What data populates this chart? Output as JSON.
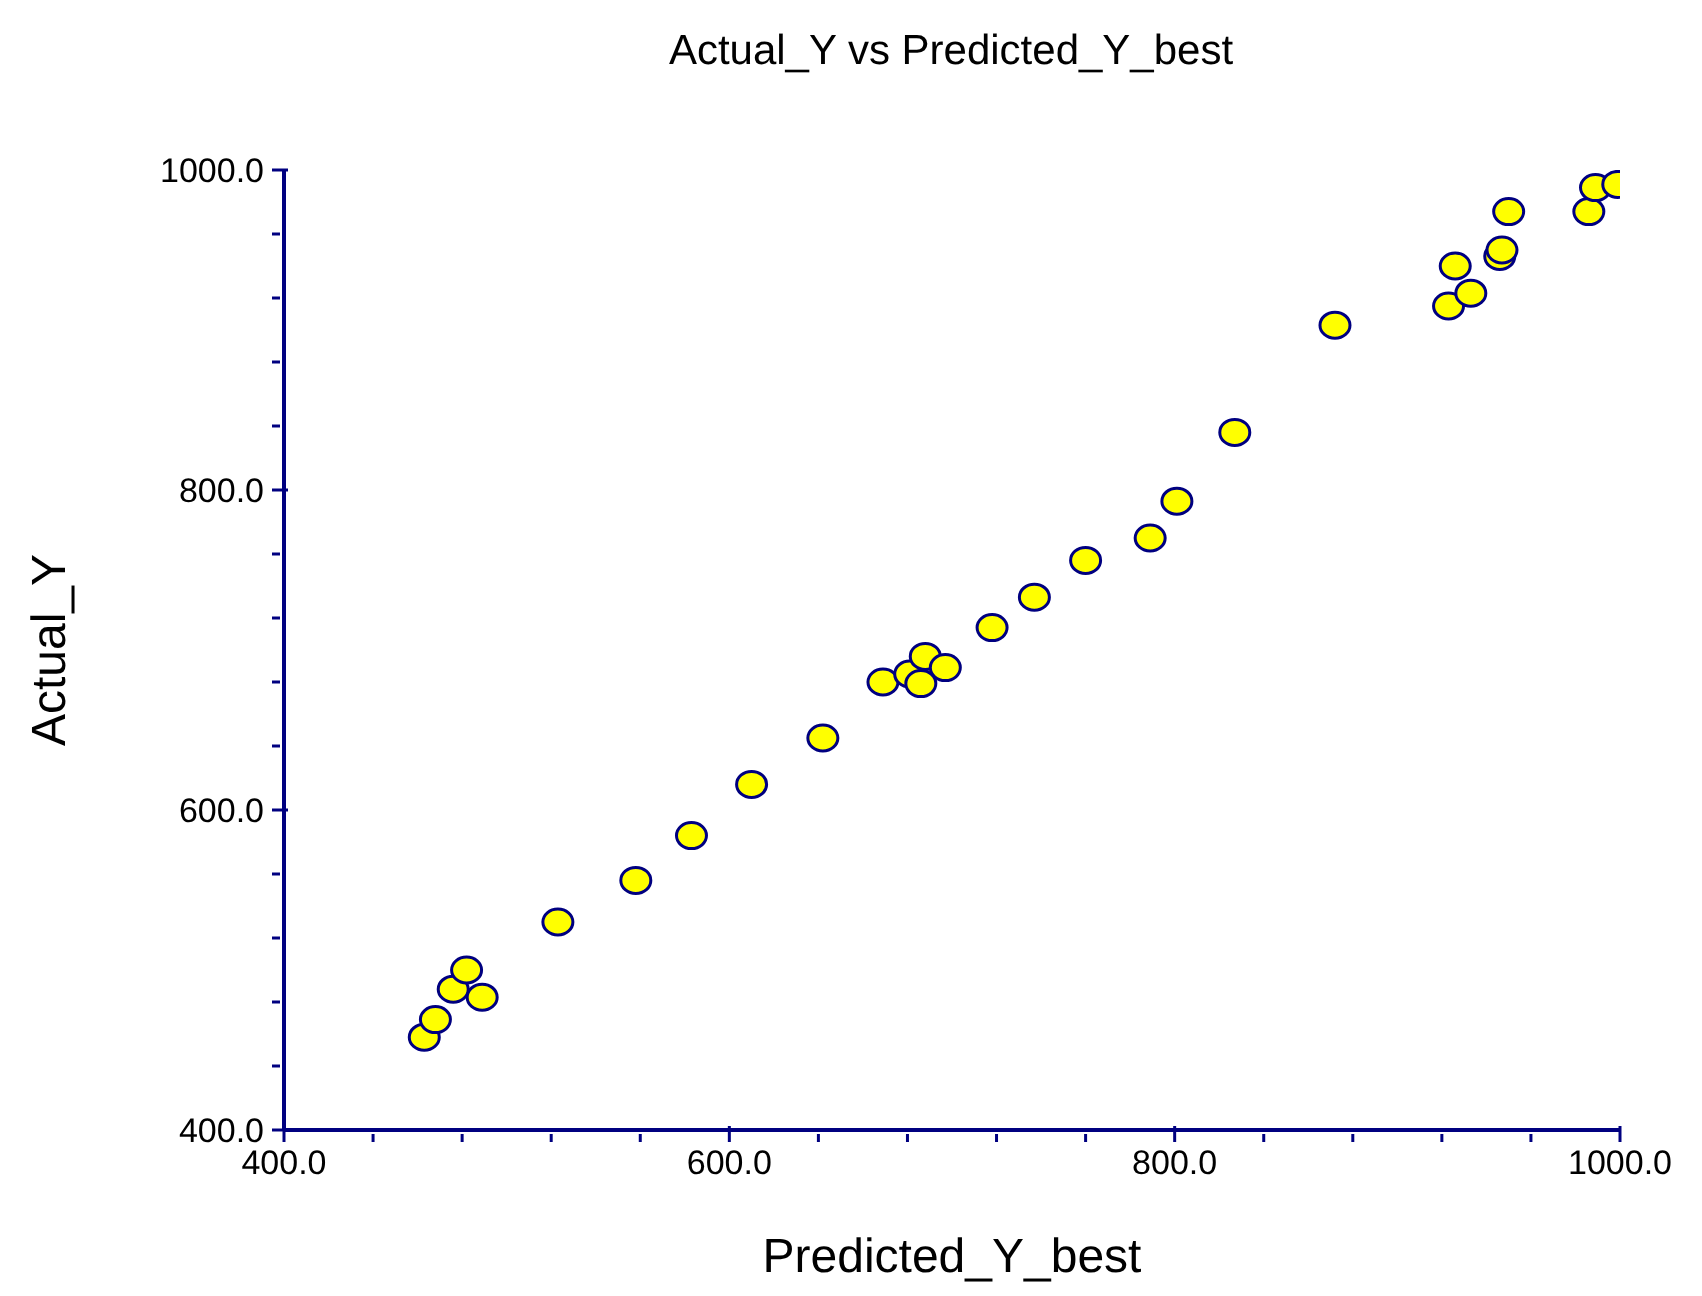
{
  "chart_data": {
    "type": "scatter",
    "title": "Actual_Y vs Predicted_Y_best",
    "xlabel": "Predicted_Y_best",
    "ylabel": "Actual_Y",
    "x": [
      463,
      468,
      476,
      482,
      489,
      523,
      558,
      583,
      610,
      642,
      669,
      681,
      686,
      688,
      697,
      718,
      737,
      760,
      789,
      801,
      827,
      872,
      923,
      926,
      933,
      946,
      947,
      950,
      986,
      989,
      999
    ],
    "series": [
      {
        "color": "#ffff00",
        "values": [
          458,
          469,
          488,
          500,
          483,
          530,
          556,
          584,
          616,
          645,
          680,
          685,
          679,
          696,
          689,
          714,
          733,
          756,
          770,
          793,
          836,
          903,
          915,
          940,
          923,
          946,
          950,
          974,
          974,
          989,
          991
        ]
      }
    ],
    "xlim": [
      400,
      1000
    ],
    "ylim": [
      400,
      1000
    ],
    "xticks": [
      {
        "value": 400,
        "label": "400.0"
      },
      {
        "value": 440,
        "label": null
      },
      {
        "value": 480,
        "label": null
      },
      {
        "value": 520,
        "label": null
      },
      {
        "value": 560,
        "label": null
      },
      {
        "value": 600,
        "label": "600.0"
      },
      {
        "value": 640,
        "label": null
      },
      {
        "value": 680,
        "label": null
      },
      {
        "value": 720,
        "label": null
      },
      {
        "value": 760,
        "label": null
      },
      {
        "value": 800,
        "label": "800.0"
      },
      {
        "value": 840,
        "label": null
      },
      {
        "value": 880,
        "label": null
      },
      {
        "value": 920,
        "label": null
      },
      {
        "value": 960,
        "label": null
      },
      {
        "value": 1000,
        "label": "1000.0"
      }
    ],
    "yticks": [
      {
        "value": 400,
        "label": "400.0"
      },
      {
        "value": 440,
        "label": null
      },
      {
        "value": 480,
        "label": null
      },
      {
        "value": 520,
        "label": null
      },
      {
        "value": 560,
        "label": null
      },
      {
        "value": 600,
        "label": "600.0"
      },
      {
        "value": 640,
        "label": null
      },
      {
        "value": 680,
        "label": null
      },
      {
        "value": 720,
        "label": null
      },
      {
        "value": 760,
        "label": null
      },
      {
        "value": 800,
        "label": "800.0"
      },
      {
        "value": 840,
        "label": null
      },
      {
        "value": 880,
        "label": null
      },
      {
        "value": 920,
        "label": null
      },
      {
        "value": 960,
        "label": null
      },
      {
        "value": 1000,
        "label": "1000.0"
      }
    ],
    "grid": false,
    "legend": false,
    "marker": "circle"
  }
}
